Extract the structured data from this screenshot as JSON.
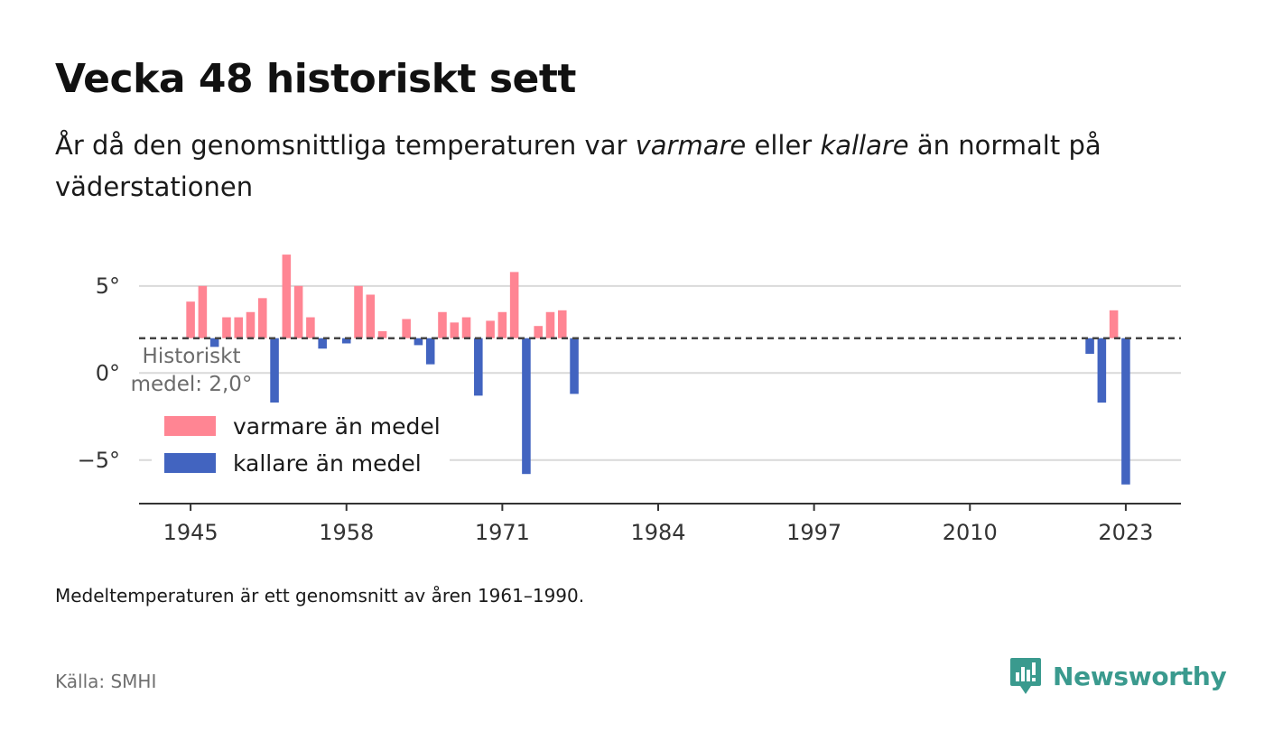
{
  "title": "Vecka 48 historiskt sett",
  "subtitle": {
    "part1": "År då den genomsnittliga temperaturen var ",
    "warm_word": "varmare",
    "part2": " eller ",
    "cold_word": "kallare",
    "part3": " än normalt på väderstationen"
  },
  "note": "Medeltemperaturen är ett genomsnitt av åren 1961–1990.",
  "source": "Källa: SMHI",
  "brand": {
    "name": "Newsworthy",
    "icon": "newsworthy-logo-icon",
    "color": "#3a9a8e"
  },
  "chart_data": {
    "type": "bar",
    "baseline": 2.0,
    "baseline_label_line1": "Historiskt",
    "baseline_label_line2": "medel: 2,0°",
    "xlim": [
      1940.7,
      2027.6
    ],
    "ylim": [
      -7.5,
      9.5
    ],
    "x_ticks": [
      1945,
      1958,
      1971,
      1984,
      1997,
      2010,
      2023
    ],
    "x_tick_labels": [
      "1945",
      "1958",
      "1971",
      "1984",
      "1997",
      "2010",
      "2023"
    ],
    "y_ticks": [
      5,
      0,
      -5
    ],
    "y_tick_labels": [
      "5°",
      "0°",
      "−5°"
    ],
    "colors": {
      "warmer": "#ff8593",
      "colder": "#4264c0",
      "baseline": "#444444",
      "grid": "#d9d9d9",
      "axis": "#333333"
    },
    "legend": [
      {
        "key": "warmer",
        "label": "varmare än medel"
      },
      {
        "key": "colder",
        "label": "kallare än medel"
      }
    ],
    "legend_position": "bottom-left",
    "data": [
      {
        "year": 1945,
        "value": 4.1
      },
      {
        "year": 1946,
        "value": 5.0
      },
      {
        "year": 1947,
        "value": 1.5
      },
      {
        "year": 1948,
        "value": 3.2
      },
      {
        "year": 1949,
        "value": 3.2
      },
      {
        "year": 1950,
        "value": 3.5
      },
      {
        "year": 1951,
        "value": 4.3
      },
      {
        "year": 1952,
        "value": -1.9
      },
      {
        "year": 1953,
        "value": 6.8
      },
      {
        "year": 1954,
        "value": 5.0
      },
      {
        "year": 1955,
        "value": 3.2
      },
      {
        "year": 1956,
        "value": 1.4
      },
      {
        "year": 1958,
        "value": 1.7
      },
      {
        "year": 1959,
        "value": 5.0
      },
      {
        "year": 1960,
        "value": 4.5
      },
      {
        "year": 1961,
        "value": 2.4
      },
      {
        "year": 1963,
        "value": 3.1
      },
      {
        "year": 1964,
        "value": 1.6
      },
      {
        "year": 1965,
        "value": 0.5
      },
      {
        "year": 1966,
        "value": 3.5
      },
      {
        "year": 1967,
        "value": 2.9
      },
      {
        "year": 1968,
        "value": 3.2
      },
      {
        "year": 1969,
        "value": -1.3
      },
      {
        "year": 1970,
        "value": 3.0
      },
      {
        "year": 1971,
        "value": 3.5
      },
      {
        "year": 1972,
        "value": 5.8
      },
      {
        "year": 1973,
        "value": -5.8
      },
      {
        "year": 1974,
        "value": 2.7
      },
      {
        "year": 1975,
        "value": 3.5
      },
      {
        "year": 1976,
        "value": 3.6
      },
      {
        "year": 1977,
        "value": -1.2
      },
      {
        "year": 2020,
        "value": 1.1
      },
      {
        "year": 2021,
        "value": -1.7
      },
      {
        "year": 2022,
        "value": 3.6
      },
      {
        "year": 2023,
        "value": -6.4
      }
    ]
  }
}
